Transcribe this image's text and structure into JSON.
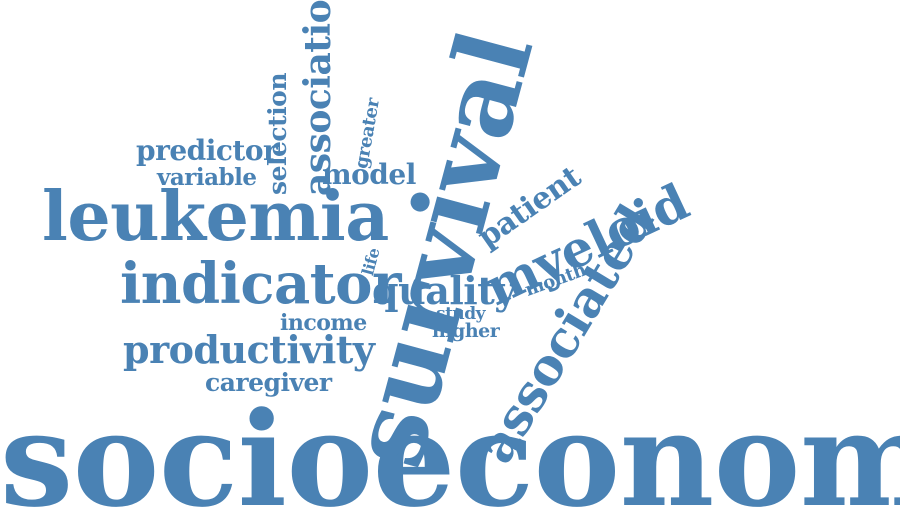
{
  "color": "#4a82b4",
  "words": [
    {
      "key": "socioeconomic",
      "text": "socioeconomic"
    },
    {
      "key": "survival",
      "text": "survival"
    },
    {
      "key": "leukemia",
      "text": "leukemia"
    },
    {
      "key": "indicator",
      "text": "indicator"
    },
    {
      "key": "associated",
      "text": "associated"
    },
    {
      "key": "myeloid",
      "text": "myeloid"
    },
    {
      "key": "productivity",
      "text": "productivity"
    },
    {
      "key": "quality",
      "text": "quality"
    },
    {
      "key": "association",
      "text": "association"
    },
    {
      "key": "patient",
      "text": "patient"
    },
    {
      "key": "predictor",
      "text": "predictor"
    },
    {
      "key": "caregiver",
      "text": "caregiver"
    },
    {
      "key": "model",
      "text": "model"
    },
    {
      "key": "selection",
      "text": "selection"
    },
    {
      "key": "variable",
      "text": "variable"
    },
    {
      "key": "income",
      "text": "income"
    },
    {
      "key": "higher",
      "text": "higher"
    },
    {
      "key": "month",
      "text": "month"
    },
    {
      "key": "greater",
      "text": "greater"
    },
    {
      "key": "study",
      "text": "study"
    },
    {
      "key": "life",
      "text": "life"
    }
  ]
}
